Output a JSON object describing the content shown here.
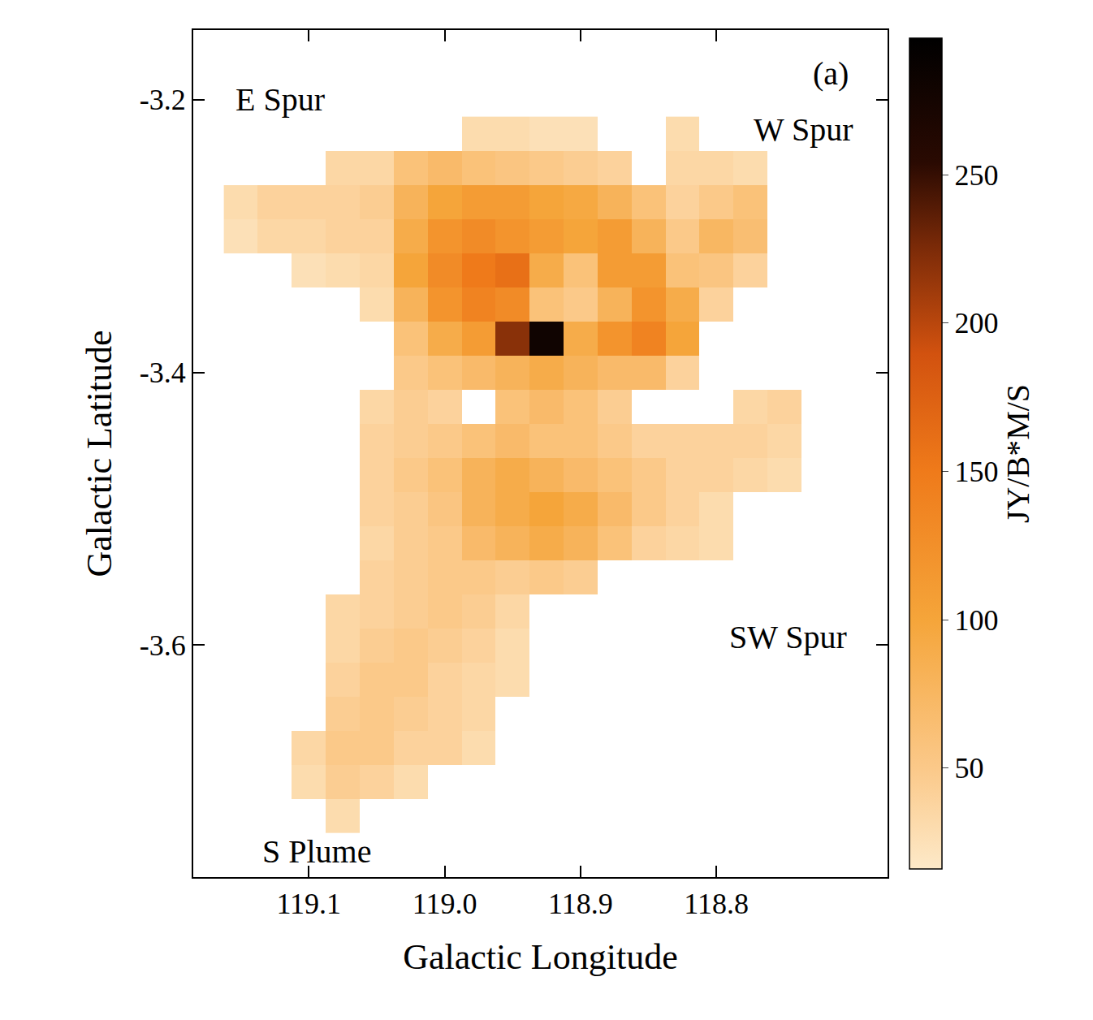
{
  "chart_data": {
    "type": "heatmap",
    "xlabel": "Galactic Longitude",
    "ylabel": "Galactic Latitude",
    "x": [
      119.15,
      119.125,
      119.1,
      119.075,
      119.05,
      119.025,
      119.0,
      118.975,
      118.95,
      118.925,
      118.9,
      118.875,
      118.85,
      118.825,
      118.8,
      118.775,
      118.75,
      118.725,
      118.7
    ],
    "y": [
      -3.225,
      -3.25,
      -3.275,
      -3.3,
      -3.325,
      -3.35,
      -3.375,
      -3.4,
      -3.425,
      -3.45,
      -3.475,
      -3.5,
      -3.525,
      -3.55,
      -3.575,
      -3.6,
      -3.625,
      -3.65,
      -3.675,
      -3.7,
      -3.725
    ],
    "z": [
      [
        null,
        null,
        null,
        null,
        null,
        null,
        null,
        30,
        30,
        25,
        25,
        null,
        null,
        30,
        null,
        null,
        null,
        null,
        null
      ],
      [
        null,
        null,
        null,
        35,
        35,
        60,
        70,
        60,
        55,
        50,
        45,
        40,
        null,
        35,
        35,
        30,
        null,
        null,
        null
      ],
      [
        30,
        40,
        40,
        40,
        45,
        80,
        100,
        110,
        110,
        100,
        95,
        80,
        60,
        40,
        50,
        60,
        null,
        null,
        null
      ],
      [
        25,
        35,
        35,
        40,
        40,
        90,
        120,
        130,
        120,
        110,
        100,
        110,
        80,
        50,
        75,
        65,
        null,
        null,
        null
      ],
      [
        null,
        null,
        25,
        30,
        35,
        100,
        130,
        150,
        160,
        90,
        60,
        110,
        110,
        60,
        55,
        40,
        null,
        null,
        null
      ],
      [
        null,
        null,
        null,
        null,
        30,
        80,
        120,
        140,
        130,
        60,
        50,
        80,
        120,
        90,
        40,
        null,
        null,
        null,
        null
      ],
      [
        null,
        null,
        null,
        null,
        null,
        60,
        90,
        110,
        220,
        280,
        90,
        120,
        140,
        100,
        null,
        null,
        null,
        null,
        null
      ],
      [
        null,
        null,
        null,
        null,
        null,
        50,
        60,
        70,
        80,
        90,
        80,
        70,
        70,
        40,
        null,
        null,
        null,
        null,
        null
      ],
      [
        null,
        null,
        null,
        null,
        35,
        45,
        40,
        null,
        60,
        70,
        60,
        45,
        null,
        null,
        null,
        35,
        40,
        null,
        null
      ],
      [
        null,
        null,
        null,
        null,
        40,
        45,
        50,
        60,
        70,
        60,
        60,
        50,
        40,
        40,
        40,
        40,
        35,
        null,
        null
      ],
      [
        null,
        null,
        null,
        null,
        40,
        50,
        60,
        80,
        90,
        80,
        70,
        60,
        50,
        40,
        40,
        35,
        30,
        null,
        null
      ],
      [
        null,
        null,
        null,
        null,
        40,
        45,
        55,
        80,
        90,
        100,
        90,
        70,
        50,
        40,
        30,
        null,
        null,
        null,
        null
      ],
      [
        null,
        null,
        null,
        null,
        35,
        45,
        50,
        70,
        80,
        90,
        80,
        60,
        40,
        35,
        30,
        null,
        null,
        null,
        null
      ],
      [
        null,
        null,
        null,
        null,
        40,
        45,
        50,
        50,
        45,
        50,
        45,
        null,
        null,
        null,
        null,
        null,
        null,
        null,
        null
      ],
      [
        null,
        null,
        null,
        35,
        40,
        45,
        50,
        45,
        35,
        null,
        null,
        null,
        null,
        null,
        null,
        null,
        null,
        null,
        null
      ],
      [
        null,
        null,
        null,
        35,
        45,
        50,
        45,
        40,
        30,
        null,
        null,
        null,
        null,
        null,
        null,
        null,
        null,
        null,
        null
      ],
      [
        null,
        null,
        null,
        40,
        50,
        50,
        40,
        35,
        30,
        null,
        null,
        null,
        null,
        null,
        null,
        null,
        null,
        null,
        null
      ],
      [
        null,
        null,
        null,
        45,
        50,
        45,
        40,
        35,
        null,
        null,
        null,
        null,
        null,
        null,
        null,
        null,
        null,
        null,
        null
      ],
      [
        null,
        null,
        35,
        50,
        50,
        40,
        40,
        30,
        null,
        null,
        null,
        null,
        null,
        null,
        null,
        null,
        null,
        null,
        null
      ],
      [
        null,
        null,
        30,
        45,
        40,
        30,
        null,
        null,
        null,
        null,
        null,
        null,
        null,
        null,
        null,
        null,
        null,
        null,
        null
      ],
      [
        null,
        null,
        null,
        30,
        null,
        null,
        null,
        null,
        null,
        null,
        null,
        null,
        null,
        null,
        null,
        null,
        null,
        null,
        null
      ]
    ],
    "xlim": [
      119.185,
      118.674
    ],
    "ylim": [
      -3.77,
      -3.149
    ],
    "xticks": [
      119.1,
      {
        "value": 119,
        "label": "119.0"
      },
      118.9,
      118.8
    ],
    "yticks": [
      -3.6,
      -3.4,
      -3.2
    ],
    "colorbar": {
      "title": "JY/B*M/S",
      "range": [
        16,
        296
      ],
      "ticks": [
        50,
        100,
        150,
        200,
        250
      ]
    },
    "annotations": [
      {
        "text": "(a)",
        "x": 118.716,
        "y": -3.181
      },
      {
        "text": "E Spur",
        "x": 119.121,
        "y": -3.2
      },
      {
        "text": "W Spur",
        "x": 118.736,
        "y": -3.222
      },
      {
        "text": "SW Spur",
        "x": 118.747,
        "y": -3.594
      },
      {
        "text": "S Plume",
        "x": 119.094,
        "y": -3.751
      }
    ]
  }
}
